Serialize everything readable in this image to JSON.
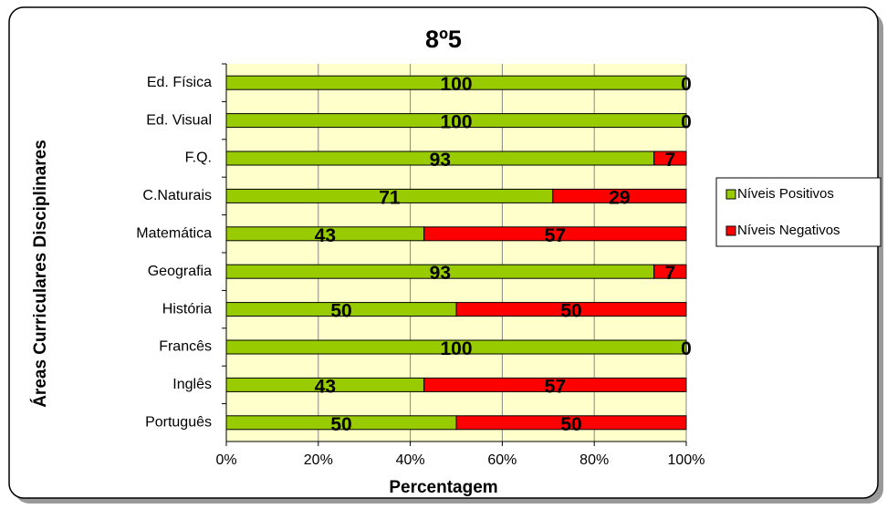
{
  "chart_data": {
    "type": "stacked-bar-horizontal",
    "title": "8º5",
    "x_label": "Percentagem",
    "y_label": "Áreas Curriculares  Disciplinares",
    "categories": [
      "Ed. Física",
      "Ed. Visual",
      "F.Q.",
      "C.Naturais",
      "Matemática",
      "Geografia",
      "História",
      "Francês",
      "Inglês",
      "Português"
    ],
    "series": [
      {
        "name": "Níveis Positivos",
        "color": "#99cc00",
        "values": [
          100,
          100,
          93,
          71,
          43,
          93,
          50,
          100,
          43,
          50
        ]
      },
      {
        "name": "Níveis Negativos",
        "color": "#ff0000",
        "values": [
          0,
          0,
          7,
          29,
          57,
          7,
          50,
          0,
          57,
          50
        ]
      }
    ],
    "xlim": [
      0,
      100
    ],
    "xticks": [
      {
        "value": 0,
        "label": "0%"
      },
      {
        "value": 20,
        "label": "20%"
      },
      {
        "value": 40,
        "label": "40%"
      },
      {
        "value": 60,
        "label": "60%"
      },
      {
        "value": 80,
        "label": "80%"
      },
      {
        "value": 100,
        "label": "100%"
      }
    ],
    "grid": true,
    "legend": "right"
  }
}
